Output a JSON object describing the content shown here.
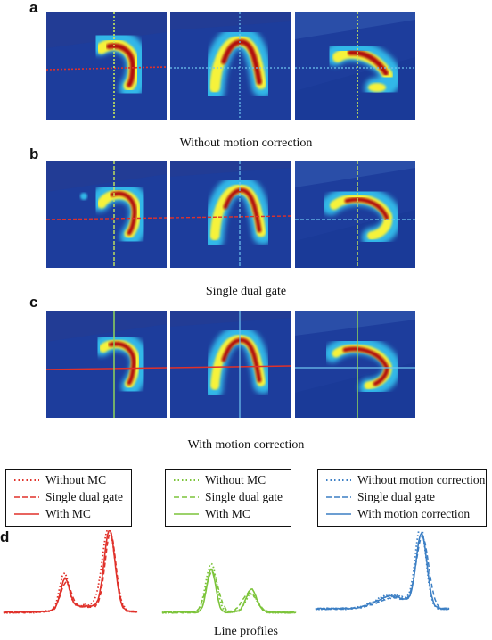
{
  "panels": {
    "a": {
      "letter": "a",
      "caption": "Without motion correction"
    },
    "b": {
      "letter": "b",
      "caption": "Single dual gate"
    },
    "c": {
      "letter": "c",
      "caption": "With motion correction"
    },
    "d": {
      "letter": "d",
      "caption": "Line profiles"
    }
  },
  "colors": {
    "red": "#e0312a",
    "green": "#7cc43a",
    "blue": "#3c7fc4"
  },
  "legends": [
    {
      "color": "red",
      "items": [
        {
          "style": "dotted",
          "label": "Without MC"
        },
        {
          "style": "dashed",
          "label": "Single dual gate"
        },
        {
          "style": "solid",
          "label": "With MC"
        }
      ]
    },
    {
      "color": "green",
      "items": [
        {
          "style": "dotted",
          "label": "Without MC"
        },
        {
          "style": "dashed",
          "label": "Single dual gate"
        },
        {
          "style": "solid",
          "label": "With MC"
        }
      ]
    },
    {
      "color": "blue",
      "items": [
        {
          "style": "dotted",
          "label": "Without motion correction"
        },
        {
          "style": "dashed",
          "label": "Single dual gate"
        },
        {
          "style": "solid",
          "label": "With motion correction"
        }
      ]
    }
  ]
}
